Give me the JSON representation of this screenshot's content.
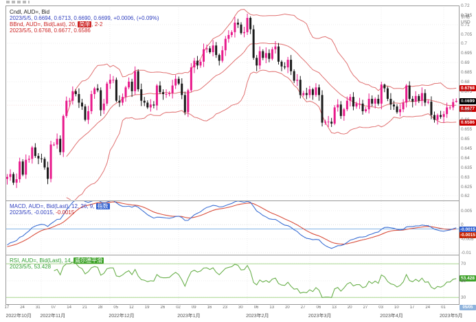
{
  "main_legend": {
    "line1": "Cndl, AUD=, Bid",
    "line2": "2023/5/5, 0.6694, 0.6713, 0.6690, 0.6699, +0.0006, (+0.09%)",
    "line3_prefix": "BBnd, AUD=, Bid(Last), 20, ",
    "line3_param": "简单",
    "line3_suffix": ", 2-2",
    "line4": "2023/5/5, 0.6768, 0.6677, 0.6586"
  },
  "macd_legend": {
    "line1_prefix": "MACD, AUD=, Bid(Last), 12, 26, 9, ",
    "line1_param": "指数",
    "line2_left": "2023/5/5, -0.0015, ",
    "line2_signal": "-0.0015"
  },
  "rsi_legend": {
    "line1_prefix": "RSI, AUD=, Bid(Last), 14, ",
    "line1_param": "威尔德平滑",
    "line2": "2023/5/5, 53.428"
  },
  "axis": {
    "price_title": "价格",
    "price_unit": "USD",
    "price_ticks": [
      "0.72",
      "0.715",
      "0.71",
      "0.705",
      "0.7",
      "0.695",
      "0.69",
      "0.685",
      "0.68",
      "0.675",
      "0.67",
      "0.665",
      "0.66",
      "0.655",
      "0.65",
      "0.645",
      "0.64",
      "0.635",
      "0.63",
      "0.625",
      "0.62"
    ],
    "macd_ticks": [
      "0.005",
      "0",
      "-0.005",
      "-0.01"
    ],
    "rsi_ticks": [
      "70",
      "50",
      "30"
    ],
    "day_tick_idx": [
      0,
      5,
      10,
      15,
      20,
      25,
      30,
      35,
      40,
      45,
      50,
      55,
      60,
      65,
      70,
      75,
      80,
      85,
      90,
      95,
      100,
      105,
      110,
      115,
      120,
      125,
      130,
      135,
      140
    ],
    "day_tick_labels": [
      "17",
      "24",
      "31",
      "07",
      "14",
      "21",
      "28",
      "05",
      "12",
      "19",
      "26",
      "02",
      "09",
      "16",
      "23",
      "30",
      "06",
      "13",
      "20",
      "27",
      "06",
      "13",
      "20",
      "27",
      "03",
      "10",
      "17",
      "24",
      "01"
    ],
    "month_labels": [
      {
        "i": 0,
        "label": "2022年10月"
      },
      {
        "i": 11,
        "label": "2022年11月"
      },
      {
        "i": 33,
        "label": "2022年12月"
      },
      {
        "i": 55,
        "label": "2023年1月"
      },
      {
        "i": 77,
        "label": "2023年2月"
      },
      {
        "i": 97,
        "label": "2023年3月"
      },
      {
        "i": 120,
        "label": "2023年4月"
      },
      {
        "i": 140,
        "label": "2023年5月"
      }
    ]
  },
  "badges": {
    "bb_upper": "0.6768",
    "price": "0.6699",
    "bb_mid": "0.6677",
    "bb_lower": "0.6586",
    "macd": "-0.0015",
    "signal": "-0.0015",
    "rsi": "53.428",
    "date": "05/05"
  },
  "colors": {
    "candle_up": "#e8198b",
    "candle_down": "#1a1a1a",
    "bollinger": "#e07070",
    "macd_line": "#3b6fd4",
    "macd_signal": "#d94f3d",
    "macd_current": "#7fb2e5",
    "rsi_line": "#6ab04c",
    "rsi_ref": "#a8d58e",
    "grid": "#d9d9d9",
    "frame": "#999999",
    "badge_red": "#cc0000",
    "badge_black": "#000000",
    "badge_blue": "#2f5fcf",
    "badge_signal": "#cc2200",
    "badge_green": "#3fa32a",
    "badge_date": "#8fb3dc"
  },
  "chart_data": {
    "type": "candlestick",
    "symbol": "AUD=",
    "interval": "daily",
    "title": "Cndl, AUD=, Bid",
    "ylim": [
      0.618,
      0.72
    ],
    "macd_ylim": [
      -0.0105,
      0.0085
    ],
    "rsi_ylim": [
      22,
      80
    ],
    "price_scale": 10000,
    "indicators": {
      "bollinger": {
        "period": 20,
        "type": "简单",
        "stddev": "2-2",
        "upper": 0.6768,
        "middle": 0.6677,
        "lower": 0.6586
      },
      "macd": {
        "fast": 12,
        "slow": 26,
        "signal_period": 9,
        "type": "指数",
        "macd": -0.0015,
        "signal": -0.0015
      },
      "rsi": {
        "period": 14,
        "smoothing": "威尔德平滑",
        "value": 53.428
      }
    },
    "last_quote": {
      "date": "2023/5/5",
      "open": 0.6694,
      "high": 0.6713,
      "low": 0.669,
      "close": 0.6699,
      "change": 0.0006,
      "change_pct": "+0.09%"
    },
    "candles": [
      [
        6290,
        6315,
        6260,
        6300
      ],
      [
        6300,
        6340,
        6280,
        6315
      ],
      [
        6315,
        6325,
        6258,
        6270
      ],
      [
        6270,
        6318,
        6242,
        6288
      ],
      [
        6288,
        6401,
        6270,
        6381
      ],
      [
        6381,
        6393,
        6304,
        6312
      ],
      [
        6312,
        6418,
        6290,
        6390
      ],
      [
        6390,
        6413,
        6375,
        6395
      ],
      [
        6395,
        6463,
        6370,
        6455
      ],
      [
        6455,
        6477,
        6400,
        6410
      ],
      [
        6410,
        6425,
        6367,
        6397
      ],
      [
        6397,
        6422,
        6375,
        6395
      ],
      [
        6395,
        6405,
        6338,
        6350
      ],
      [
        6350,
        6380,
        6262,
        6290
      ],
      [
        6290,
        6490,
        6272,
        6470
      ],
      [
        6470,
        6482,
        6462,
        6470
      ],
      [
        6470,
        6528,
        6448,
        6500
      ],
      [
        6500,
        6518,
        6415,
        6430
      ],
      [
        6430,
        6628,
        6405,
        6620
      ],
      [
        6620,
        6722,
        6610,
        6700
      ],
      [
        6700,
        6715,
        6670,
        6700
      ],
      [
        6700,
        6775,
        6680,
        6750
      ],
      [
        6750,
        6760,
        6723,
        6735
      ],
      [
        6735,
        6765,
        6662,
        6690
      ],
      [
        6690,
        6710,
        6652,
        6670
      ],
      [
        6670,
        6682,
        6592,
        6600
      ],
      [
        6600,
        6673,
        6578,
        6645
      ],
      [
        6645,
        6753,
        6630,
        6735
      ],
      [
        6735,
        6773,
        6710,
        6765
      ],
      [
        6765,
        6787,
        6745,
        6755
      ],
      [
        6755,
        6770,
        6620,
        6650
      ],
      [
        6650,
        6710,
        6630,
        6685
      ],
      [
        6685,
        6800,
        6673,
        6790
      ],
      [
        6790,
        6840,
        6762,
        6810
      ],
      [
        6810,
        6830,
        6792,
        6810
      ],
      [
        6810,
        6822,
        6692,
        6700
      ],
      [
        6700,
        6728,
        6668,
        6690
      ],
      [
        6690,
        6738,
        6675,
        6720
      ],
      [
        6720,
        6778,
        6695,
        6770
      ],
      [
        6770,
        6822,
        6760,
        6800
      ],
      [
        6800,
        6815,
        6720,
        6750
      ],
      [
        6750,
        6880,
        6730,
        6855
      ],
      [
        6855,
        6865,
        6748,
        6760
      ],
      [
        6760,
        6790,
        6672,
        6700
      ],
      [
        6700,
        6720,
        6672,
        6690
      ],
      [
        6690,
        6702,
        6657,
        6665
      ],
      [
        6665,
        6708,
        6643,
        6680
      ],
      [
        6680,
        6698,
        6660,
        6675
      ],
      [
        6675,
        6788,
        6650,
        6780
      ],
      [
        6780,
        6802,
        6735,
        6745
      ],
      [
        6745,
        6760,
        6705,
        6735
      ],
      [
        6735,
        6760,
        6715,
        6735
      ],
      [
        6735,
        6750,
        6723,
        6740
      ],
      [
        6740,
        6810,
        6712,
        6780
      ],
      [
        6780,
        6835,
        6762,
        6815
      ],
      [
        6815,
        6827,
        6782,
        6790
      ],
      [
        6790,
        6818,
        6708,
        6730
      ],
      [
        6730,
        6748,
        6625,
        6640
      ],
      [
        6640,
        6763,
        6615,
        6755
      ],
      [
        6755,
        6897,
        6745,
        6875
      ],
      [
        6875,
        6925,
        6845,
        6910
      ],
      [
        6910,
        6935,
        6865,
        6885
      ],
      [
        6885,
        6915,
        6873,
        6905
      ],
      [
        6905,
        7000,
        6877,
        6970
      ],
      [
        6970,
        6995,
        6952,
        6975
      ],
      [
        6975,
        6987,
        6947,
        6955
      ],
      [
        6955,
        7018,
        6933,
        6990
      ],
      [
        6990,
        7008,
        6925,
        6940
      ],
      [
        6940,
        6948,
        6885,
        6910
      ],
      [
        6910,
        6987,
        6900,
        6965
      ],
      [
        6965,
        7040,
        6935,
        7025
      ],
      [
        7025,
        7070,
        7005,
        7045
      ],
      [
        7045,
        7070,
        7033,
        7060
      ],
      [
        7060,
        7140,
        7032,
        7110
      ],
      [
        7110,
        7130,
        7082,
        7100
      ],
      [
        7100,
        7112,
        7047,
        7055
      ],
      [
        7055,
        7088,
        7033,
        7060
      ],
      [
        7060,
        7157,
        7045,
        7135
      ],
      [
        7135,
        7143,
        7050,
        7075
      ],
      [
        7075,
        7097,
        6915,
        6925
      ],
      [
        6925,
        6940,
        6855,
        6885
      ],
      [
        6885,
        6985,
        6865,
        6960
      ],
      [
        6960,
        6970,
        6913,
        6925
      ],
      [
        6925,
        6980,
        6897,
        6950
      ],
      [
        6950,
        6970,
        6902,
        6920
      ],
      [
        6920,
        6982,
        6912,
        6970
      ],
      [
        6970,
        7013,
        6948,
        6985
      ],
      [
        6985,
        7003,
        6890,
        6905
      ],
      [
        6905,
        6913,
        6855,
        6880
      ],
      [
        6880,
        6902,
        6865,
        6875
      ],
      [
        6875,
        6930,
        6845,
        6915
      ],
      [
        6915,
        6940,
        6835,
        6855
      ],
      [
        6855,
        6865,
        6793,
        6805
      ],
      [
        6805,
        6840,
        6777,
        6810
      ],
      [
        6810,
        6830,
        6712,
        6730
      ],
      [
        6730,
        6752,
        6722,
        6740
      ],
      [
        6740,
        6768,
        6708,
        6730
      ],
      [
        6730,
        6778,
        6715,
        6760
      ],
      [
        6760,
        6768,
        6705,
        6730
      ],
      [
        6730,
        6792,
        6720,
        6770
      ],
      [
        6770,
        6785,
        6700,
        6730
      ],
      [
        6730,
        6755,
        6565,
        6585
      ],
      [
        6585,
        6600,
        6573,
        6590
      ],
      [
        6590,
        6620,
        6562,
        6590
      ],
      [
        6590,
        6610,
        6562,
        6580
      ],
      [
        6580,
        6677,
        6572,
        6665
      ],
      [
        6665,
        6708,
        6643,
        6680
      ],
      [
        6680,
        6698,
        6605,
        6620
      ],
      [
        6620,
        6663,
        6595,
        6655
      ],
      [
        6655,
        6722,
        6645,
        6700
      ],
      [
        6700,
        6735,
        6670,
        6720
      ],
      [
        6720,
        6745,
        6650,
        6670
      ],
      [
        6670,
        6695,
        6658,
        6685
      ],
      [
        6685,
        6715,
        6657,
        6685
      ],
      [
        6685,
        6705,
        6627,
        6645
      ],
      [
        6645,
        6667,
        6637,
        6655
      ],
      [
        6655,
        6738,
        6633,
        6710
      ],
      [
        6710,
        6728,
        6670,
        6685
      ],
      [
        6685,
        6718,
        6660,
        6710
      ],
      [
        6710,
        6732,
        6675,
        6685
      ],
      [
        6685,
        6800,
        6655,
        6785
      ],
      [
        6785,
        6790,
        6745,
        6765
      ],
      [
        6765,
        6775,
        6698,
        6710
      ],
      [
        6710,
        6740,
        6652,
        6680
      ],
      [
        6680,
        6700,
        6652,
        6670
      ],
      [
        6670,
        6682,
        6632,
        6640
      ],
      [
        6640,
        6683,
        6618,
        6655
      ],
      [
        6655,
        6708,
        6640,
        6690
      ],
      [
        6690,
        6788,
        6665,
        6780
      ],
      [
        6780,
        6802,
        6700,
        6710
      ],
      [
        6710,
        6725,
        6665,
        6695
      ],
      [
        6695,
        6750,
        6675,
        6725
      ],
      [
        6725,
        6735,
        6688,
        6700
      ],
      [
        6700,
        6770,
        6672,
        6740
      ],
      [
        6740,
        6760,
        6672,
        6690
      ],
      [
        6690,
        6707,
        6682,
        6695
      ],
      [
        6695,
        6723,
        6603,
        6625
      ],
      [
        6625,
        6643,
        6585,
        6600
      ],
      [
        6600,
        6633,
        6575,
        6625
      ],
      [
        6625,
        6647,
        6605,
        6615
      ],
      [
        6615,
        6645,
        6585,
        6630
      ],
      [
        6630,
        6690,
        6610,
        6665
      ],
      [
        6665,
        6675,
        6653,
        6665
      ],
      [
        6665,
        6710,
        6650,
        6693
      ],
      [
        6694,
        6713,
        6690,
        6699
      ]
    ]
  }
}
